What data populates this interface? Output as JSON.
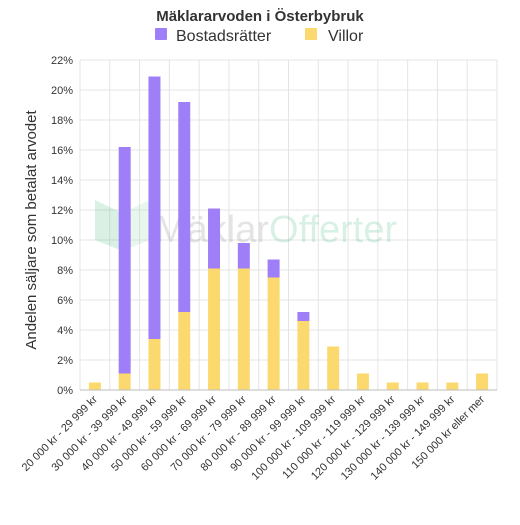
{
  "colors": {
    "bostadsratter": "#9f7ff7",
    "villor": "#fcd96f",
    "grid": "#e4e4e4",
    "text": "#333333",
    "watermark_green": "#8fd3ad"
  },
  "watermark": {
    "brand_part1": "Mäklar",
    "brand_part2": "Offerter"
  },
  "chart_data": {
    "type": "bar",
    "stacked": true,
    "title": "Mäklararvoden i Österbybruk",
    "xlabel": "",
    "ylabel": "Andelen säljare som betalat arvodet",
    "ylim": [
      0,
      22
    ],
    "yticks": [
      0,
      2,
      4,
      6,
      8,
      10,
      12,
      14,
      16,
      18,
      20,
      22
    ],
    "ytick_labels": [
      "0%",
      "2%",
      "4%",
      "6%",
      "8%",
      "10%",
      "12%",
      "14%",
      "16%",
      "18%",
      "20%",
      "22%"
    ],
    "grid": true,
    "legend_position": "top",
    "categories": [
      "20 000 kr - 29 999 kr",
      "30 000 kr - 39 999 kr",
      "40 000 kr - 49 999 kr",
      "50 000 kr - 59 999 kr",
      "60 000 kr - 69 999 kr",
      "70 000 kr - 79 999 kr",
      "80 000 kr - 89 999 kr",
      "90 000 kr - 99 999 kr",
      "100 000 kr - 109 999 kr",
      "110 000 kr - 119 999 kr",
      "120 000 kr - 129 999 kr",
      "130 000 kr - 139 999 kr",
      "140 000 kr - 149 999 kr",
      "150 000 kr eller mer"
    ],
    "series": [
      {
        "name": "Villor",
        "values": [
          0.5,
          1.1,
          3.4,
          5.2,
          8.1,
          8.1,
          7.5,
          4.6,
          2.9,
          1.1,
          0.5,
          0.5,
          0.5,
          1.1
        ]
      },
      {
        "name": "Bostadsrätter",
        "values": [
          0,
          15.1,
          17.5,
          14.0,
          4.0,
          1.7,
          1.2,
          0.6,
          0,
          0,
          0,
          0,
          0,
          0
        ]
      }
    ]
  }
}
